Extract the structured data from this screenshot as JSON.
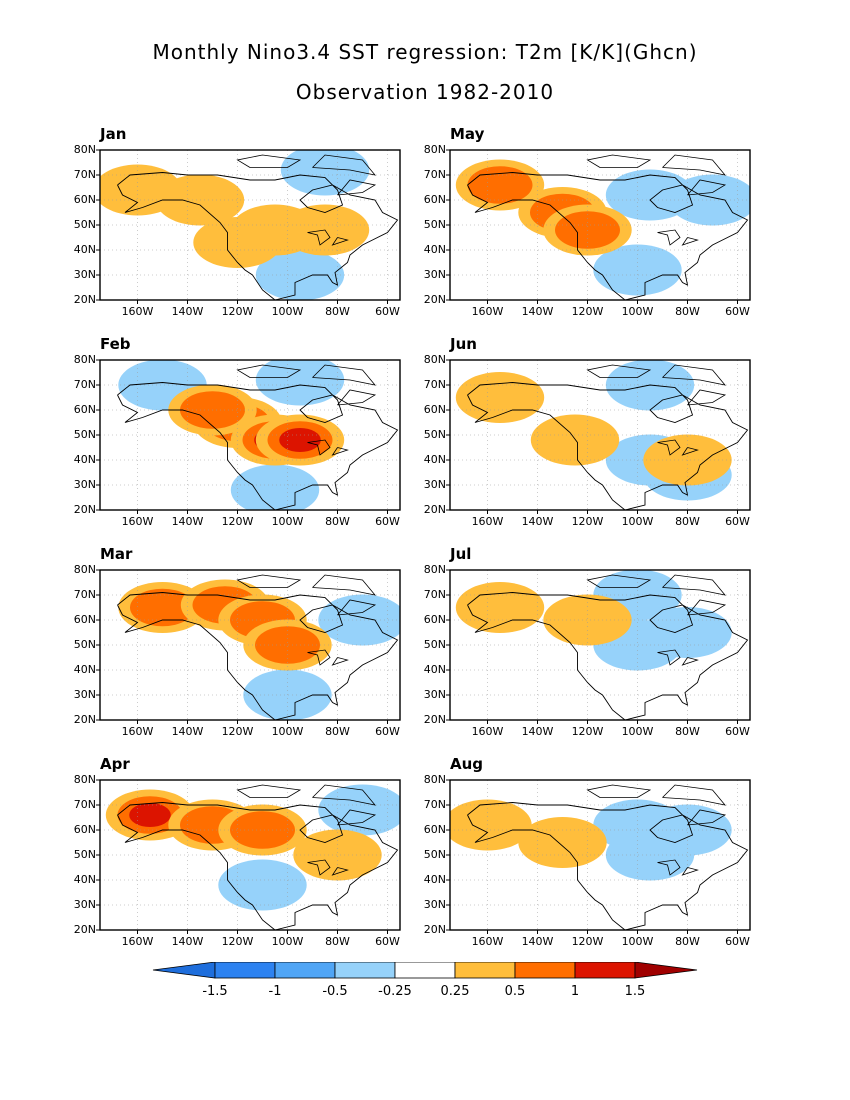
{
  "title_line1": "Monthly Nino3.4 SST regression: T2m [K/K](Ghcn)",
  "title_line2": "Observation 1982-2010",
  "lat_ticks": [
    "80N",
    "70N",
    "60N",
    "50N",
    "40N",
    "30N",
    "20N"
  ],
  "lon_ticks": [
    "160W",
    "140W",
    "120W",
    "100W",
    "80W",
    "60W"
  ],
  "colorbar": {
    "levels": [
      "-1.5",
      "-1",
      "-0.5",
      "-0.25",
      "0.25",
      "0.5",
      "1",
      "1.5"
    ],
    "colors": [
      "#1e6edc",
      "#2d82f0",
      "#50a5f5",
      "#96d2fa",
      "#ffffff",
      "#ffbe3c",
      "#ff6e00",
      "#dc1400",
      "#a00000"
    ]
  },
  "panels": [
    {
      "month": "Jan",
      "warm": [
        [
          -160,
          64,
          1
        ],
        [
          -135,
          60,
          1
        ],
        [
          -105,
          48,
          1
        ],
        [
          -85,
          48,
          1
        ],
        [
          -120,
          43,
          1
        ]
      ],
      "cold": [
        [
          -95,
          30,
          1
        ],
        [
          -85,
          72,
          1
        ]
      ]
    },
    {
      "month": "May",
      "warm": [
        [
          -155,
          66,
          2
        ],
        [
          -130,
          55,
          2
        ],
        [
          -120,
          48,
          2
        ]
      ],
      "cold": [
        [
          -95,
          62,
          1
        ],
        [
          -70,
          60,
          1
        ],
        [
          -100,
          32,
          1
        ]
      ]
    },
    {
      "month": "Feb",
      "warm": [
        [
          -120,
          55,
          2
        ],
        [
          -105,
          48,
          3
        ],
        [
          -95,
          48,
          3
        ],
        [
          -130,
          60,
          2
        ]
      ],
      "cold": [
        [
          -95,
          72,
          1
        ],
        [
          -150,
          70,
          1
        ],
        [
          -105,
          28,
          1
        ]
      ]
    },
    {
      "month": "Jun",
      "warm": [
        [
          -155,
          65,
          1
        ],
        [
          -125,
          48,
          1
        ],
        [
          -80,
          40,
          1
        ]
      ],
      "cold": [
        [
          -95,
          70,
          1
        ],
        [
          -95,
          40,
          1
        ],
        [
          -80,
          34,
          1
        ]
      ]
    },
    {
      "month": "Mar",
      "warm": [
        [
          -150,
          65,
          2
        ],
        [
          -125,
          66,
          2
        ],
        [
          -110,
          60,
          2
        ],
        [
          -100,
          50,
          2
        ]
      ],
      "cold": [
        [
          -100,
          30,
          1
        ],
        [
          -70,
          60,
          1
        ]
      ]
    },
    {
      "month": "Jul",
      "warm": [
        [
          -155,
          65,
          1
        ],
        [
          -120,
          60,
          1
        ]
      ],
      "cold": [
        [
          -100,
          50,
          1
        ],
        [
          -80,
          55,
          1
        ],
        [
          -100,
          70,
          1
        ]
      ]
    },
    {
      "month": "Apr",
      "warm": [
        [
          -155,
          66,
          3
        ],
        [
          -130,
          62,
          2
        ],
        [
          -110,
          60,
          2
        ],
        [
          -80,
          50,
          1
        ]
      ],
      "cold": [
        [
          -110,
          38,
          1
        ],
        [
          -70,
          68,
          1
        ]
      ]
    },
    {
      "month": "Aug",
      "warm": [
        [
          -160,
          62,
          1
        ],
        [
          -130,
          55,
          1
        ]
      ],
      "cold": [
        [
          -95,
          50,
          1
        ],
        [
          -100,
          62,
          1
        ],
        [
          -80,
          60,
          1
        ]
      ]
    }
  ]
}
